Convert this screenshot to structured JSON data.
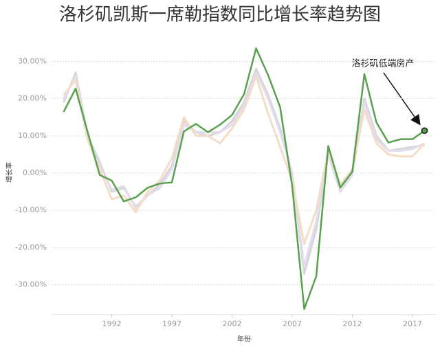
{
  "chart_data": {
    "type": "line",
    "title": "洛杉矶凯斯一席勒指数同比增长率趋势图",
    "x_label": "年份",
    "y_label": "增长率",
    "annotation": "洛杉矶低端房产",
    "x": [
      1988,
      1989,
      1990,
      1991,
      1992,
      1993,
      1994,
      1995,
      1996,
      1997,
      1998,
      1999,
      2000,
      2001,
      2002,
      2003,
      2004,
      2005,
      2006,
      2007,
      2008,
      2009,
      2010,
      2011,
      2012,
      2013,
      2014,
      2015,
      2016,
      2017,
      2018
    ],
    "xlim": [
      1987,
      2019
    ],
    "xticks": [
      1992,
      1997,
      2002,
      2007,
      2012,
      2017
    ],
    "ylim": [
      -38,
      34.5
    ],
    "yticks": [
      {
        "value": 30,
        "label": "30.00%"
      },
      {
        "value": 20,
        "label": "20.00%"
      },
      {
        "value": 10,
        "label": "10.00%"
      },
      {
        "value": 0,
        "label": "0.00%"
      },
      {
        "value": -10,
        "label": "-10.00%"
      },
      {
        "value": -20,
        "label": "-20.00%"
      },
      {
        "value": -30,
        "label": "-30.00%"
      }
    ],
    "grid": true,
    "series": [
      {
        "color": "#59a14f",
        "highlight": true,
        "values": [
          16.4,
          22.7,
          11,
          -0.5,
          -2,
          -7.6,
          -6.5,
          -3.9,
          -2.8,
          -2.5,
          11.2,
          13.2,
          11,
          13,
          15.6,
          21.2,
          33.5,
          26.3,
          17.7,
          -3.5,
          -36.5,
          -27.7,
          7.3,
          -3.9,
          0.4,
          26.6,
          13.6,
          8.2,
          9.1,
          9.1,
          11.4
        ]
      },
      {
        "color": "#d5d5da",
        "values": [
          19,
          27,
          10,
          3,
          -5,
          -4,
          -9,
          -6,
          -3,
          2,
          14,
          11,
          10,
          11,
          14,
          19,
          28,
          21,
          12,
          0,
          -27,
          -15,
          5,
          -5,
          0,
          20,
          10,
          6,
          6.5,
          7,
          7.5
        ]
      },
      {
        "color": "#e3dcec",
        "values": [
          20,
          26,
          9,
          2,
          -4.5,
          -3.5,
          -9.5,
          -6,
          -4,
          1,
          13,
          11,
          11,
          11,
          13,
          18,
          27,
          20,
          11,
          0,
          -25,
          -13,
          5,
          -5,
          -0.5,
          19,
          9,
          6,
          6,
          6.5,
          8
        ]
      },
      {
        "color": "#f4dcc6",
        "values": [
          21,
          25,
          9,
          1,
          -7,
          -6,
          -10.5,
          -5,
          -2,
          4,
          15,
          10,
          10,
          8,
          12,
          17,
          26,
          16,
          7,
          -2,
          -19,
          -10,
          6,
          -3,
          1,
          17,
          8,
          5,
          4.5,
          4.5,
          8
        ]
      }
    ]
  }
}
